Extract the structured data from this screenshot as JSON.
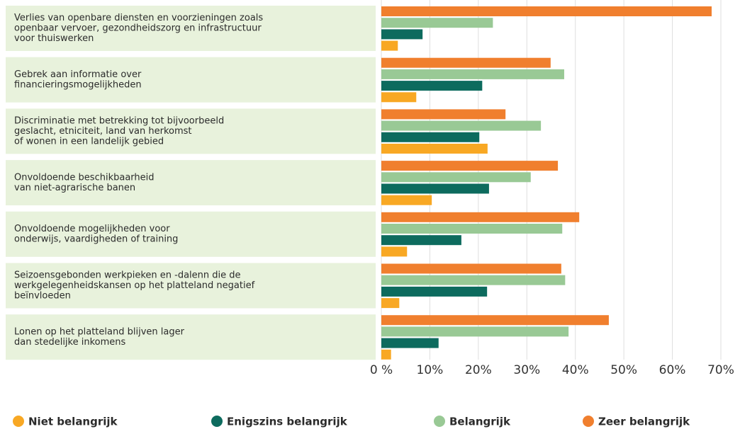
{
  "chart_data": {
    "type": "bar",
    "orientation": "horizontal",
    "categories": [
      [
        "Verlies van openbare diensten en voorzieningen zoals",
        "openbaar vervoer, gezondheidszorg en infrastructuur",
        "voor thuiswerken"
      ],
      [
        "Gebrek aan informatie over",
        "financieringsmogelijkheden"
      ],
      [
        "Discriminatie met betrekking tot bijvoorbeeld",
        "geslacht, etniciteit, land van herkomst",
        "of wonen in een landelijk gebied"
      ],
      [
        "Onvoldoende beschikbaarheid",
        "van niet-agrarische banen"
      ],
      [
        "Onvoldoende mogelijkheden voor",
        "onderwijs, vaardigheden of training"
      ],
      [
        "Seizoensgebonden werkpieken en -dalenn die de",
        "werkgelegenheidskansen op het platteland negatief",
        "beïnvloeden"
      ],
      [
        "Lonen op het platteland blijven lager",
        "dan stedelijke inkomens"
      ]
    ],
    "series": [
      {
        "name": "Niet belangrijk",
        "color": "#f8a824",
        "values": [
          3.4,
          7.2,
          21.9,
          10.4,
          5.3,
          3.7,
          2.0
        ]
      },
      {
        "name": "Enigszins belangrijk",
        "color": "#0d6b5e",
        "values": [
          8.5,
          20.8,
          20.2,
          22.2,
          16.5,
          21.8,
          11.8
        ]
      },
      {
        "name": "Belangrijk",
        "color": "#99c995",
        "values": [
          23.0,
          37.7,
          32.9,
          30.8,
          37.3,
          37.9,
          38.6
        ]
      },
      {
        "name": "Zeer belangrijk",
        "color": "#f07f2e",
        "values": [
          68.1,
          34.9,
          25.6,
          36.4,
          40.8,
          37.1,
          46.9
        ]
      }
    ],
    "xlim": [
      0,
      70
    ],
    "xticks": [
      {
        "value": 0,
        "label": "0 %"
      },
      {
        "value": 10,
        "label": "10%"
      },
      {
        "value": 20,
        "label": "20%"
      },
      {
        "value": 30,
        "label": "30%"
      },
      {
        "value": 40,
        "label": "40%"
      },
      {
        "value": 50,
        "label": "50%"
      },
      {
        "value": 60,
        "label": "60%"
      },
      {
        "value": 70,
        "label": "70%"
      }
    ],
    "grid": true,
    "legend": "bottom"
  }
}
